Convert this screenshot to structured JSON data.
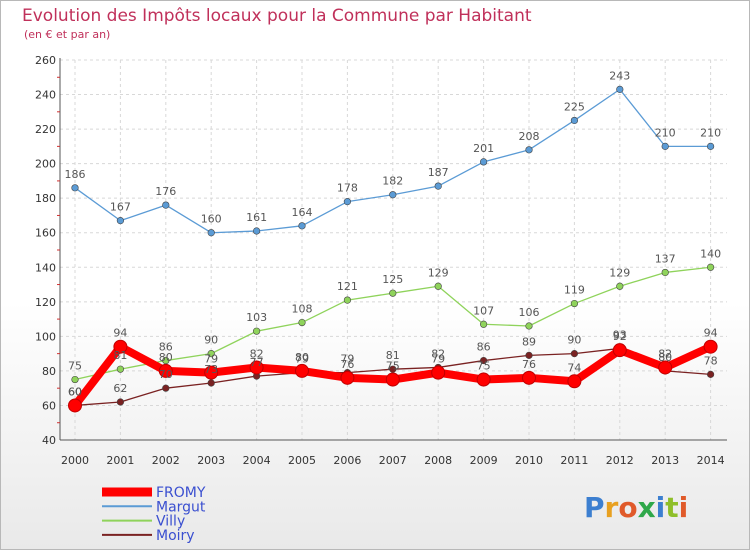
{
  "chart_data": {
    "type": "line",
    "title": "Evolution des Impôts locaux pour la Commune par Habitant",
    "subtitle": "(en € et par an)",
    "xlabel": "",
    "ylabel": "",
    "x": [
      "2000",
      "2001",
      "2002",
      "2003",
      "2004",
      "2005",
      "2006",
      "2007",
      "2008",
      "2009",
      "2010",
      "2011",
      "2012",
      "2013",
      "2014"
    ],
    "ylim": [
      40,
      260
    ],
    "yticks": [
      40,
      60,
      80,
      100,
      120,
      140,
      160,
      180,
      200,
      220,
      240,
      260
    ],
    "grid": true,
    "legend": "bottom-left",
    "series": [
      {
        "name": "FROMY",
        "color": "#ff0000",
        "values": [
          60,
          94,
          80,
          79,
          82,
          80,
          76,
          75,
          79,
          75,
          76,
          74,
          92,
          82,
          94
        ]
      },
      {
        "name": "Margut",
        "color": "#5b9bd5",
        "values": [
          186,
          167,
          176,
          160,
          161,
          164,
          178,
          182,
          187,
          201,
          208,
          225,
          243,
          210,
          210
        ]
      },
      {
        "name": "Villy",
        "color": "#8fd35b",
        "values": [
          75,
          81,
          86,
          90,
          103,
          108,
          121,
          125,
          129,
          107,
          106,
          119,
          129,
          137,
          140
        ]
      },
      {
        "name": "Moiry",
        "color": "#7a2222",
        "values": [
          60,
          62,
          70,
          73,
          77,
          79,
          79,
          81,
          82,
          86,
          89,
          90,
          93,
          80,
          78
        ]
      }
    ]
  },
  "logo": {
    "text": "Proxiti"
  }
}
